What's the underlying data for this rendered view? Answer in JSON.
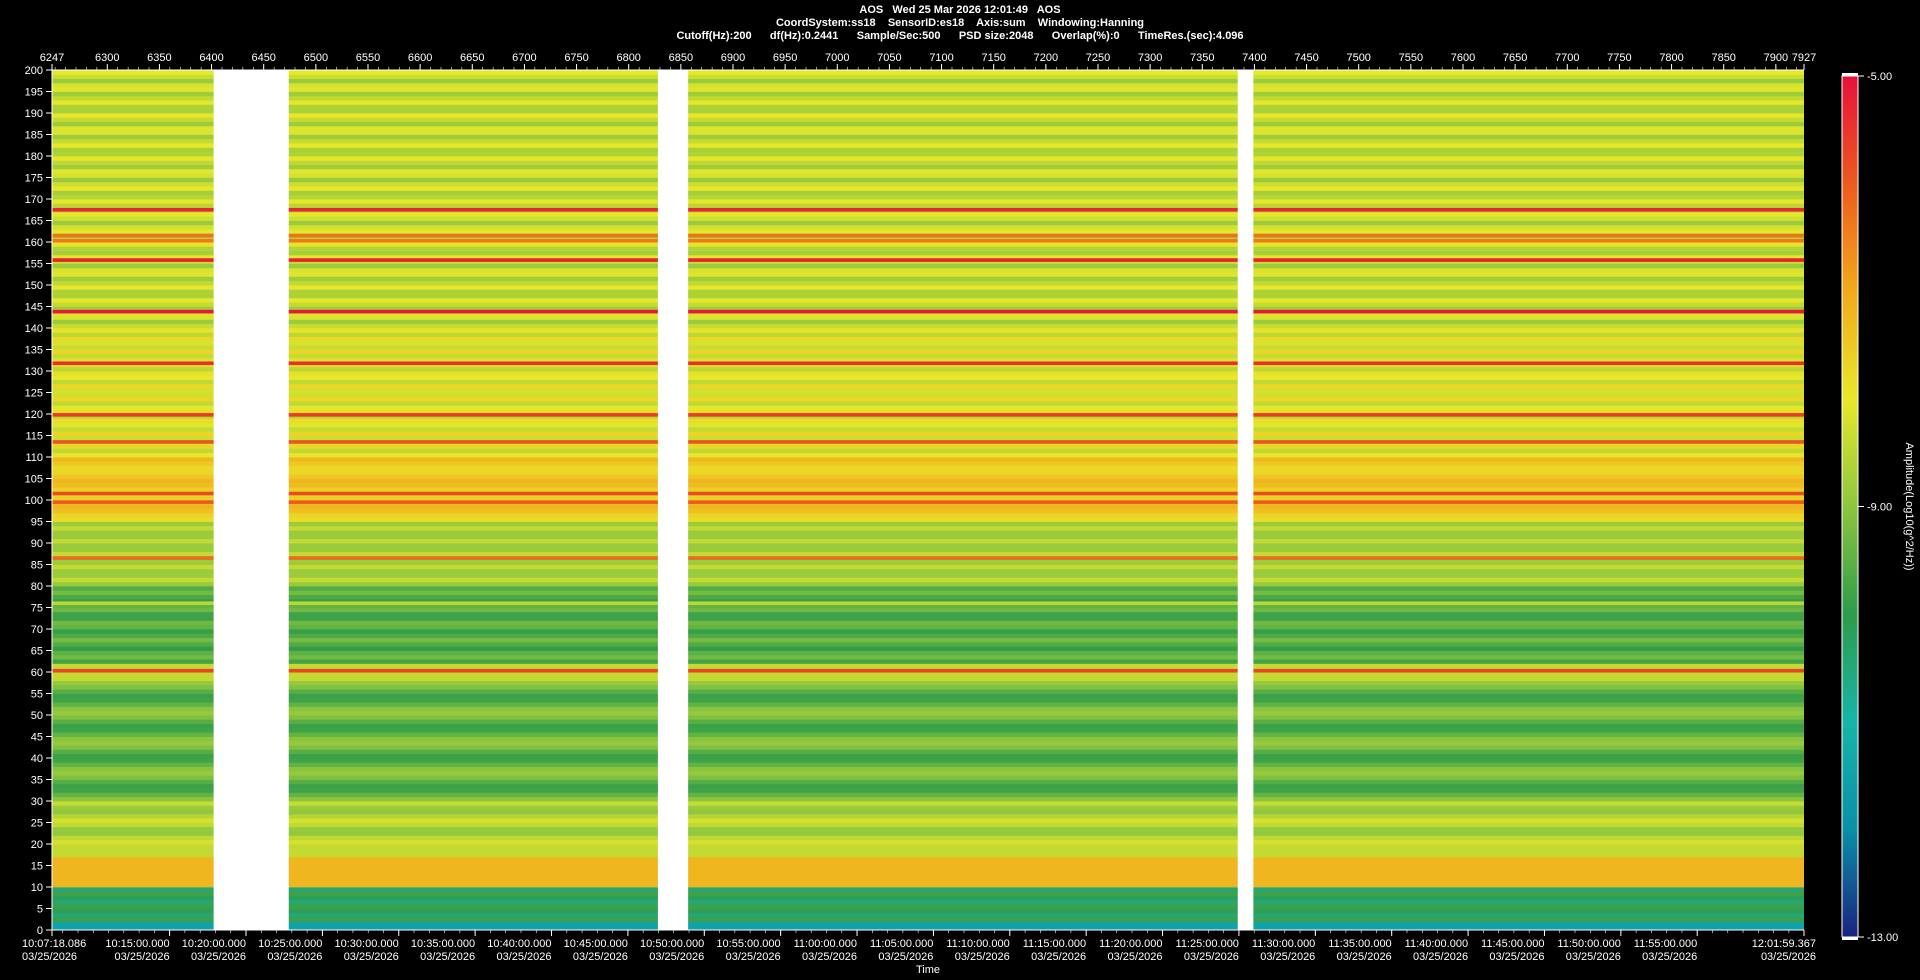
{
  "header": {
    "line1": "AOS   Wed 25 Mar 2026 12:01:49   AOS",
    "line2": "CoordSystem:ss18    SensorID:es18    Axis:sum    Windowing:Hanning",
    "line3": "Cutoff(Hz):200      df(Hz):0.2441      Sample/Sec:500      PSD size:2048      Overlap(%):0      TimeRes.(sec):4.096"
  },
  "colors": {
    "background": "#000000",
    "gap": "#ffffff",
    "colormap": [
      "#1a237e",
      "#0a8fa8",
      "#17b5a8",
      "#2e9b4a",
      "#8dc63f",
      "#e8e82a",
      "#f2a91c",
      "#ec5a1e",
      "#e8103c"
    ]
  },
  "chart_data": {
    "type": "heatmap",
    "title": "",
    "xlabel": "Time",
    "ylabel": "",
    "top_axis": {
      "range": [
        6247,
        7927
      ],
      "ticks": [
        6247,
        6300,
        6350,
        6400,
        6450,
        6500,
        6550,
        6600,
        6650,
        6700,
        6750,
        6800,
        6850,
        6900,
        6950,
        7000,
        7050,
        7100,
        7150,
        7200,
        7250,
        7300,
        7350,
        7400,
        7450,
        7500,
        7550,
        7600,
        7650,
        7700,
        7750,
        7800,
        7850,
        7900,
        7927
      ]
    },
    "y_axis": {
      "range": [
        0,
        200
      ],
      "ticks": [
        0,
        5,
        10,
        15,
        20,
        25,
        30,
        35,
        40,
        45,
        50,
        55,
        60,
        65,
        70,
        75,
        80,
        85,
        90,
        95,
        100,
        105,
        110,
        115,
        120,
        125,
        130,
        135,
        140,
        145,
        150,
        155,
        160,
        165,
        170,
        175,
        180,
        185,
        190,
        195,
        200
      ]
    },
    "x_axis": {
      "start": "10:07:18.086",
      "end": "12:01:59.367",
      "start_min": 607.3,
      "end_min": 721.99,
      "date": "03/25/2026",
      "ticks": [
        {
          "label": "10:07:18.086",
          "min": 607.3,
          "date": "03/25/2026"
        },
        {
          "label": "10:15:00.000",
          "min": 615,
          "date": "03/25/2026"
        },
        {
          "label": "10:20:00.000",
          "min": 620,
          "date": "03/25/2026"
        },
        {
          "label": "10:25:00.000",
          "min": 625,
          "date": "03/25/2026"
        },
        {
          "label": "10:30:00.000",
          "min": 630,
          "date": "03/25/2026"
        },
        {
          "label": "10:35:00.000",
          "min": 635,
          "date": "03/25/2026"
        },
        {
          "label": "10:40:00.000",
          "min": 640,
          "date": "03/25/2026"
        },
        {
          "label": "10:45:00.000",
          "min": 645,
          "date": "03/25/2026"
        },
        {
          "label": "10:50:00.000",
          "min": 650,
          "date": "03/25/2026"
        },
        {
          "label": "10:55:00.000",
          "min": 655,
          "date": "03/25/2026"
        },
        {
          "label": "11:00:00.000",
          "min": 660,
          "date": "03/25/2026"
        },
        {
          "label": "11:05:00.000",
          "min": 665,
          "date": "03/25/2026"
        },
        {
          "label": "11:10:00.000",
          "min": 670,
          "date": "03/25/2026"
        },
        {
          "label": "11:15:00.000",
          "min": 675,
          "date": "03/25/2026"
        },
        {
          "label": "11:20:00.000",
          "min": 680,
          "date": "03/25/2026"
        },
        {
          "label": "11:25:00.000",
          "min": 685,
          "date": "03/25/2026"
        },
        {
          "label": "11:30:00.000",
          "min": 690,
          "date": "03/25/2026"
        },
        {
          "label": "11:35:00.000",
          "min": 695,
          "date": "03/25/2026"
        },
        {
          "label": "11:40:00.000",
          "min": 700,
          "date": "03/25/2026"
        },
        {
          "label": "11:45:00.000",
          "min": 705,
          "date": "03/25/2026"
        },
        {
          "label": "11:50:00.000",
          "min": 710,
          "date": "03/25/2026"
        },
        {
          "label": "11:55:00.000",
          "min": 715,
          "date": "03/25/2026"
        },
        {
          "label": "12:01:59.367",
          "min": 721.99,
          "date": "03/25/2026"
        }
      ]
    },
    "gaps": [
      [
        6402,
        6474
      ],
      [
        6828,
        6857
      ],
      [
        7384,
        7399
      ]
    ],
    "colorbar": {
      "label": "Amplitude(Log10(g^2/Hz))",
      "min": -13.0,
      "max": -5.0,
      "ticks": [
        "-5.00",
        "-9.00",
        "-13.00"
      ]
    },
    "spectral_lines": [
      {
        "hz": 167.5,
        "level": -5.3
      },
      {
        "hz": 161.5,
        "level": -6.3
      },
      {
        "hz": 160.3,
        "level": -6.4
      },
      {
        "hz": 155.8,
        "level": -5.2
      },
      {
        "hz": 143.8,
        "level": -5.1
      },
      {
        "hz": 131.8,
        "level": -5.4
      },
      {
        "hz": 119.8,
        "level": -5.6
      },
      {
        "hz": 113.5,
        "level": -5.9
      },
      {
        "hz": 101.5,
        "level": -5.8
      },
      {
        "hz": 99.5,
        "level": -6.0
      },
      {
        "hz": 86.5,
        "level": -6.2
      },
      {
        "hz": 60.3,
        "level": -5.7
      },
      {
        "hz": 76.0,
        "level": -8.5
      }
    ]
  }
}
